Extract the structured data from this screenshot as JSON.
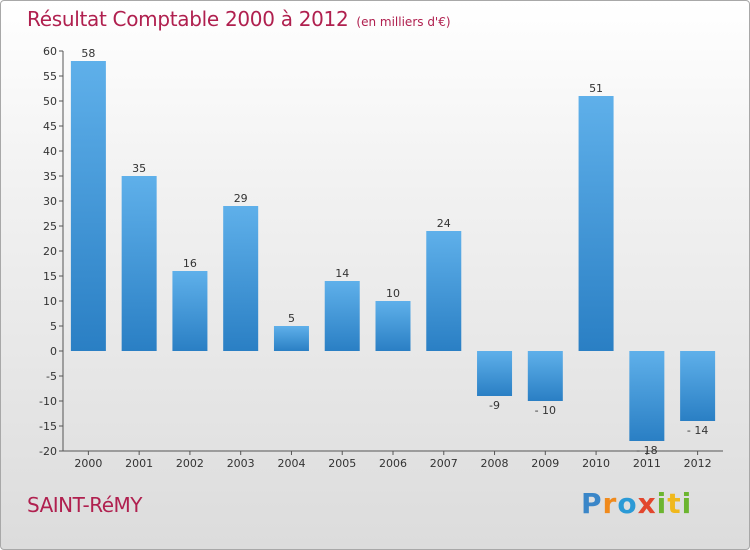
{
  "header": {
    "title": "Résultat Comptable 2000 à 2012",
    "subtitle": "(en milliers d'€)"
  },
  "footer": {
    "town": "SAINT-RéMY",
    "logo_letters": [
      "P",
      "r",
      "o",
      "x",
      "i",
      "t",
      "i"
    ]
  },
  "chart_data": {
    "type": "bar",
    "title": "Résultat Comptable 2000 à 2012",
    "subtitle": "(en milliers d'€)",
    "categories": [
      "2000",
      "2001",
      "2002",
      "2003",
      "2004",
      "2005",
      "2006",
      "2007",
      "2008",
      "2009",
      "2010",
      "2011",
      "2012"
    ],
    "values": [
      58,
      35,
      16,
      29,
      5,
      14,
      10,
      24,
      -9,
      -10,
      51,
      -18,
      -14
    ],
    "value_labels": [
      "58",
      "35",
      "16",
      "29",
      "5",
      "14",
      "10",
      "24",
      "-9",
      "- 10",
      "51",
      "- 18",
      "- 14"
    ],
    "ylim": [
      -20,
      60
    ],
    "yticks": [
      60,
      55,
      50,
      45,
      40,
      35,
      30,
      25,
      20,
      15,
      10,
      5,
      0,
      -5,
      -10,
      -15,
      -20
    ],
    "grid": false,
    "bar_color": "#3d93d8",
    "title_color": "#b0204f"
  }
}
